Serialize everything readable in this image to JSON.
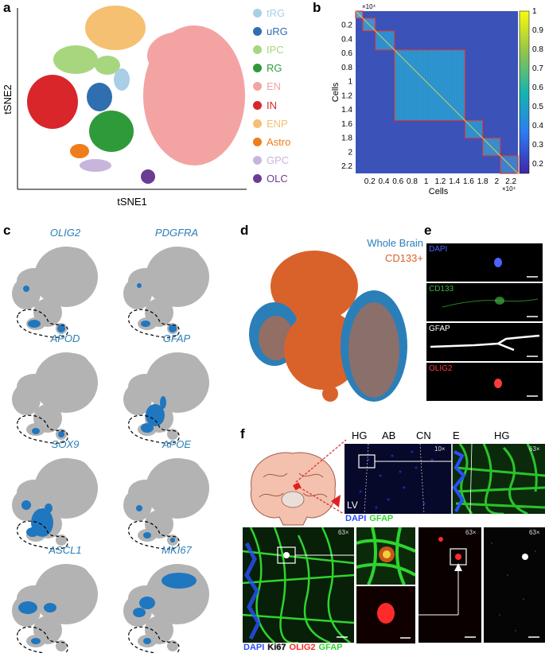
{
  "panel_labels": {
    "a": "a",
    "b": "b",
    "c": "c",
    "d": "d",
    "e": "e",
    "f": "f"
  },
  "panel_a": {
    "xlabel": "tSNE1",
    "ylabel": "tSNE2",
    "legend": [
      {
        "label": "tRG",
        "color": "#a9cfe6"
      },
      {
        "label": "uRG",
        "color": "#2f6fb0"
      },
      {
        "label": "IPC",
        "color": "#a8d67f"
      },
      {
        "label": "RG",
        "color": "#2f9a3a"
      },
      {
        "label": "EN",
        "color": "#f4a3a3"
      },
      {
        "label": "IN",
        "color": "#d8262b"
      },
      {
        "label": "ENP",
        "color": "#f5c071"
      },
      {
        "label": "Astro",
        "color": "#ef7d1c"
      },
      {
        "label": "GPC",
        "color": "#c8b5dc"
      },
      {
        "label": "OLC",
        "color": "#6a3c93"
      }
    ]
  },
  "chart_data": {
    "type": "heatmap",
    "xlabel": "Cells",
    "ylabel": "Cells",
    "x_ticks": [
      "0.2",
      "0.4",
      "0.6",
      "0.8",
      "1",
      "1.2",
      "1.4",
      "1.6",
      "1.8",
      "2",
      "2.2"
    ],
    "y_ticks": [
      "0.2",
      "0.4",
      "0.6",
      "0.8",
      "1",
      "1.2",
      "1.4",
      "1.6",
      "1.8",
      "2",
      "2.2"
    ],
    "x_exponent": "×10⁴",
    "y_exponent": "×10⁴",
    "colorbar_ticks": [
      "1",
      "0.9",
      "0.8",
      "0.7",
      "0.6",
      "0.5",
      "0.4",
      "0.3",
      "0.2"
    ],
    "range": [
      0,
      2.3
    ],
    "blocks": [
      [
        0,
        0.1
      ],
      [
        0.1,
        0.28
      ],
      [
        0.28,
        0.55
      ],
      [
        0.55,
        1.55
      ],
      [
        1.55,
        1.8
      ],
      [
        1.8,
        2.05
      ],
      [
        2.05,
        2.3
      ]
    ],
    "colorbar_range": [
      0.15,
      1
    ]
  },
  "panel_c": {
    "genes": [
      "OLIG2",
      "PDGFRA",
      "APOD",
      "GFAP",
      "SOX9",
      "APOE",
      "ASCL1",
      "MKI67"
    ]
  },
  "panel_d": {
    "legend": [
      {
        "label": "Whole Brain",
        "color": "#2a7fb8"
      },
      {
        "label": "CD133+",
        "color": "#d9622b"
      }
    ]
  },
  "panel_e": {
    "channels": [
      {
        "label": "DAPI",
        "color": "#4a64ff"
      },
      {
        "label": "CD133",
        "color": "#3fb33f"
      },
      {
        "label": "GFAP",
        "color": "#ffffff"
      },
      {
        "label": "OLIG2",
        "color": "#ff3b3b"
      }
    ]
  },
  "panel_f": {
    "regions": [
      "HG",
      "AB",
      "CN",
      "E",
      "HG"
    ],
    "mag_10x": "10×",
    "mag_63x": "63×",
    "lv": "LV",
    "stain_top": [
      {
        "label": "DAPI",
        "color": "#2b4cff"
      },
      {
        "label": "GFAP",
        "color": "#33d633"
      }
    ],
    "stain_bottom": [
      {
        "label": "DAPI",
        "color": "#2b4cff"
      },
      {
        "label": "Ki67",
        "color": "#ffffff"
      },
      {
        "label": "OLIG2",
        "color": "#ff2a2a"
      },
      {
        "label": "GFAP",
        "color": "#33d633"
      }
    ]
  }
}
